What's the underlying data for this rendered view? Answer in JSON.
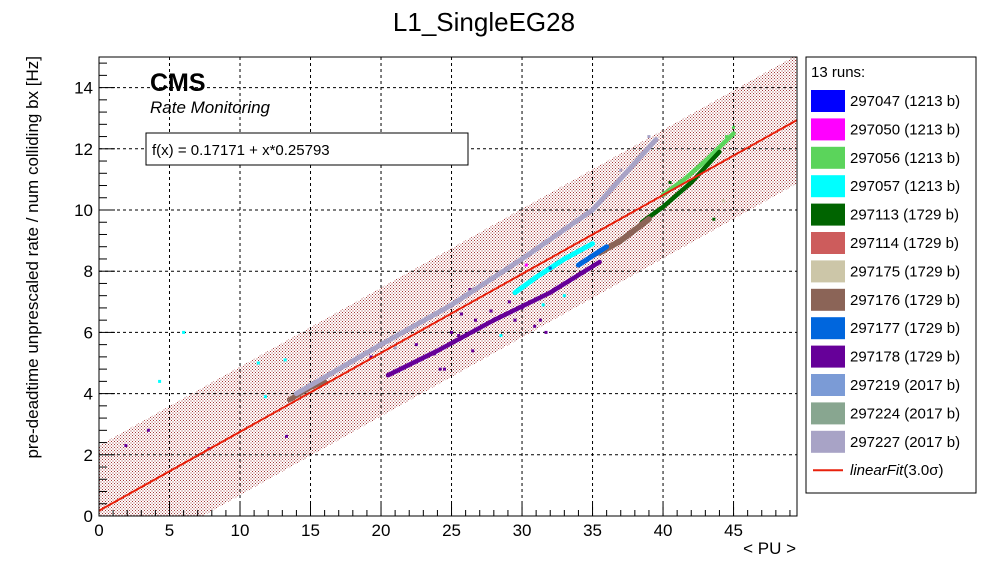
{
  "chart_data": {
    "type": "scatter",
    "title": "L1_SingleEG28",
    "xlabel": "< PU >",
    "ylabel": "pre-deadtime unprescaled rate / num colliding bx [Hz]",
    "xlim": [
      0,
      49.5
    ],
    "ylim": [
      0,
      15
    ],
    "x_ticks": [
      0,
      5,
      10,
      15,
      20,
      25,
      30,
      35,
      40,
      45
    ],
    "y_ticks": [
      0,
      2,
      4,
      6,
      8,
      10,
      12,
      14
    ],
    "grid": true,
    "legend_position": "right-outside",
    "annotations": {
      "experiment": "CMS",
      "subtitle": "Rate Monitoring",
      "fit_formula": "f(x) = 0.17171 + x*0.25793"
    },
    "fit": {
      "name": "linearFit(3.0σ)",
      "label_italic": "linearFit",
      "label_rest": "(3.0σ)",
      "intercept": 0.17171,
      "slope": 0.25793,
      "band_low_intercept": -1.9,
      "band_high_intercept": 2.3,
      "color": "#e8210c",
      "band_color": "#8b1a1a"
    },
    "legend_header": "13 runs:",
    "series": [
      {
        "name": "297047 (1213 b)",
        "color": "#0000ff",
        "segments": [],
        "points": []
      },
      {
        "name": "297050 (1213 b)",
        "color": "#ff00ff",
        "segments": [],
        "points": [
          [
            30.3,
            8.2
          ],
          [
            27.6,
            6.3
          ]
        ]
      },
      {
        "name": "297056 (1213 b)",
        "color": "#5bd45b",
        "segments": [
          {
            "x": [
              40.0,
              41.5,
              43.0,
              45.0
            ],
            "y": [
              10.5,
              11.0,
              11.6,
              12.5
            ],
            "w": 4.5
          }
        ],
        "points": [
          [
            45.0,
            12.7
          ],
          [
            44.5,
            12.4
          ]
        ]
      },
      {
        "name": "297057 (1213 b)",
        "color": "#00ffff",
        "segments": [
          {
            "x": [
              29.5,
              31.0,
              33.0,
              35.0
            ],
            "y": [
              7.3,
              7.8,
              8.4,
              8.9
            ],
            "w": 5
          }
        ],
        "points": [
          [
            6.0,
            6.0
          ],
          [
            4.3,
            4.4
          ],
          [
            11.3,
            5.0
          ],
          [
            13.2,
            5.1
          ],
          [
            11.8,
            3.9
          ],
          [
            28.5,
            5.9
          ],
          [
            31.5,
            6.9
          ],
          [
            33.0,
            7.2
          ]
        ]
      },
      {
        "name": "297113 (1729 b)",
        "color": "#006400",
        "segments": [
          {
            "x": [
              38.5,
              40.0,
              42.0,
              44.0
            ],
            "y": [
              9.6,
              10.1,
              10.9,
              11.9
            ],
            "w": 4.5
          }
        ],
        "points": [
          [
            43.6,
            9.7
          ],
          [
            42.0,
            10.9
          ],
          [
            40.5,
            10.9
          ]
        ]
      },
      {
        "name": "297114 (1729 b)",
        "color": "#cd5c5c",
        "segments": [
          {
            "x": [
              36.0,
              37.5,
              39.0
            ],
            "y": [
              8.7,
              9.2,
              9.7
            ],
            "w": 4
          }
        ],
        "points": []
      },
      {
        "name": "297175 (1729 b)",
        "color": "#ccc6a8",
        "segments": [],
        "points": [
          [
            44.3,
            10.3
          ]
        ]
      },
      {
        "name": "297176 (1729 b)",
        "color": "#8b6457",
        "segments": [
          {
            "x": [
              35.5,
              37.0,
              39.0
            ],
            "y": [
              8.6,
              9.0,
              9.7
            ],
            "w": 6
          },
          {
            "x": [
              13.5,
              15.0,
              16.0
            ],
            "y": [
              3.8,
              4.2,
              4.4
            ],
            "w": 5
          }
        ],
        "points": [
          [
            38.0,
            9.4
          ]
        ]
      },
      {
        "name": "297177 (1729 b)",
        "color": "#0066dd",
        "segments": [
          {
            "x": [
              34.0,
              35.0,
              36.0
            ],
            "y": [
              8.2,
              8.5,
              8.8
            ],
            "w": 5
          }
        ],
        "points": [
          [
            32.0,
            8.1
          ]
        ]
      },
      {
        "name": "297178 (1729 b)",
        "color": "#660099",
        "segments": [
          {
            "x": [
              20.5,
              24.0,
              28.0,
              32.0,
              35.5
            ],
            "y": [
              4.6,
              5.4,
              6.4,
              7.3,
              8.3
            ],
            "w": 4.5
          }
        ],
        "points": [
          [
            1.9,
            2.3
          ],
          [
            3.5,
            2.8
          ],
          [
            7.8,
            2.2
          ],
          [
            13.3,
            2.6
          ],
          [
            19.3,
            5.2
          ],
          [
            22.5,
            5.6
          ],
          [
            23.8,
            5.3
          ],
          [
            24.2,
            4.8
          ],
          [
            24.5,
            4.8
          ],
          [
            25.5,
            5.9
          ],
          [
            26.5,
            5.4
          ],
          [
            25.0,
            6.0
          ],
          [
            26.7,
            6.4
          ],
          [
            27.8,
            6.7
          ],
          [
            29.0,
            6.6
          ],
          [
            29.5,
            6.4
          ],
          [
            30.0,
            6.8
          ],
          [
            30.6,
            7.0
          ],
          [
            30.9,
            6.2
          ],
          [
            31.3,
            6.4
          ],
          [
            31.7,
            6.0
          ],
          [
            26.3,
            7.4
          ],
          [
            29.1,
            7.0
          ],
          [
            25.7,
            6.6
          ]
        ]
      },
      {
        "name": "297219 (2017 b)",
        "color": "#7b9bd6",
        "segments": [],
        "points": []
      },
      {
        "name": "297224 (2017 b)",
        "color": "#88a690",
        "segments": [],
        "points": []
      },
      {
        "name": "297227 (2017 b)",
        "color": "#a8a3c6",
        "segments": [
          {
            "x": [
              14.0,
              20.0,
              25.0,
              30.0,
              35.0,
              39.5
            ],
            "y": [
              4.0,
              5.6,
              6.9,
              8.4,
              10.0,
              12.3
            ],
            "w": 5
          }
        ],
        "points": [
          [
            39.0,
            12.4
          ],
          [
            37.0,
            11.3
          ],
          [
            21.0,
            5.5
          ]
        ]
      }
    ]
  }
}
